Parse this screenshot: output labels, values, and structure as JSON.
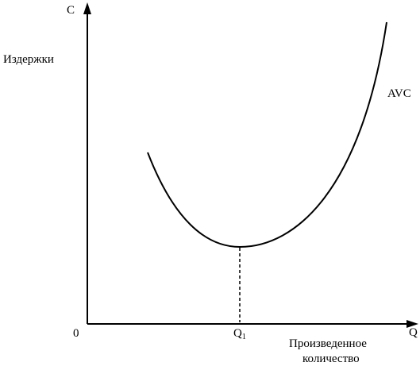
{
  "axes": {
    "y_symbol": "C",
    "y_label": "Издержки",
    "x_symbol": "Q",
    "x_label_lines": [
      "Произведенное",
      "количество"
    ],
    "origin": "0"
  },
  "curve": {
    "label": "AVC"
  },
  "marker": {
    "label": "Q",
    "subscript": "1"
  }
}
